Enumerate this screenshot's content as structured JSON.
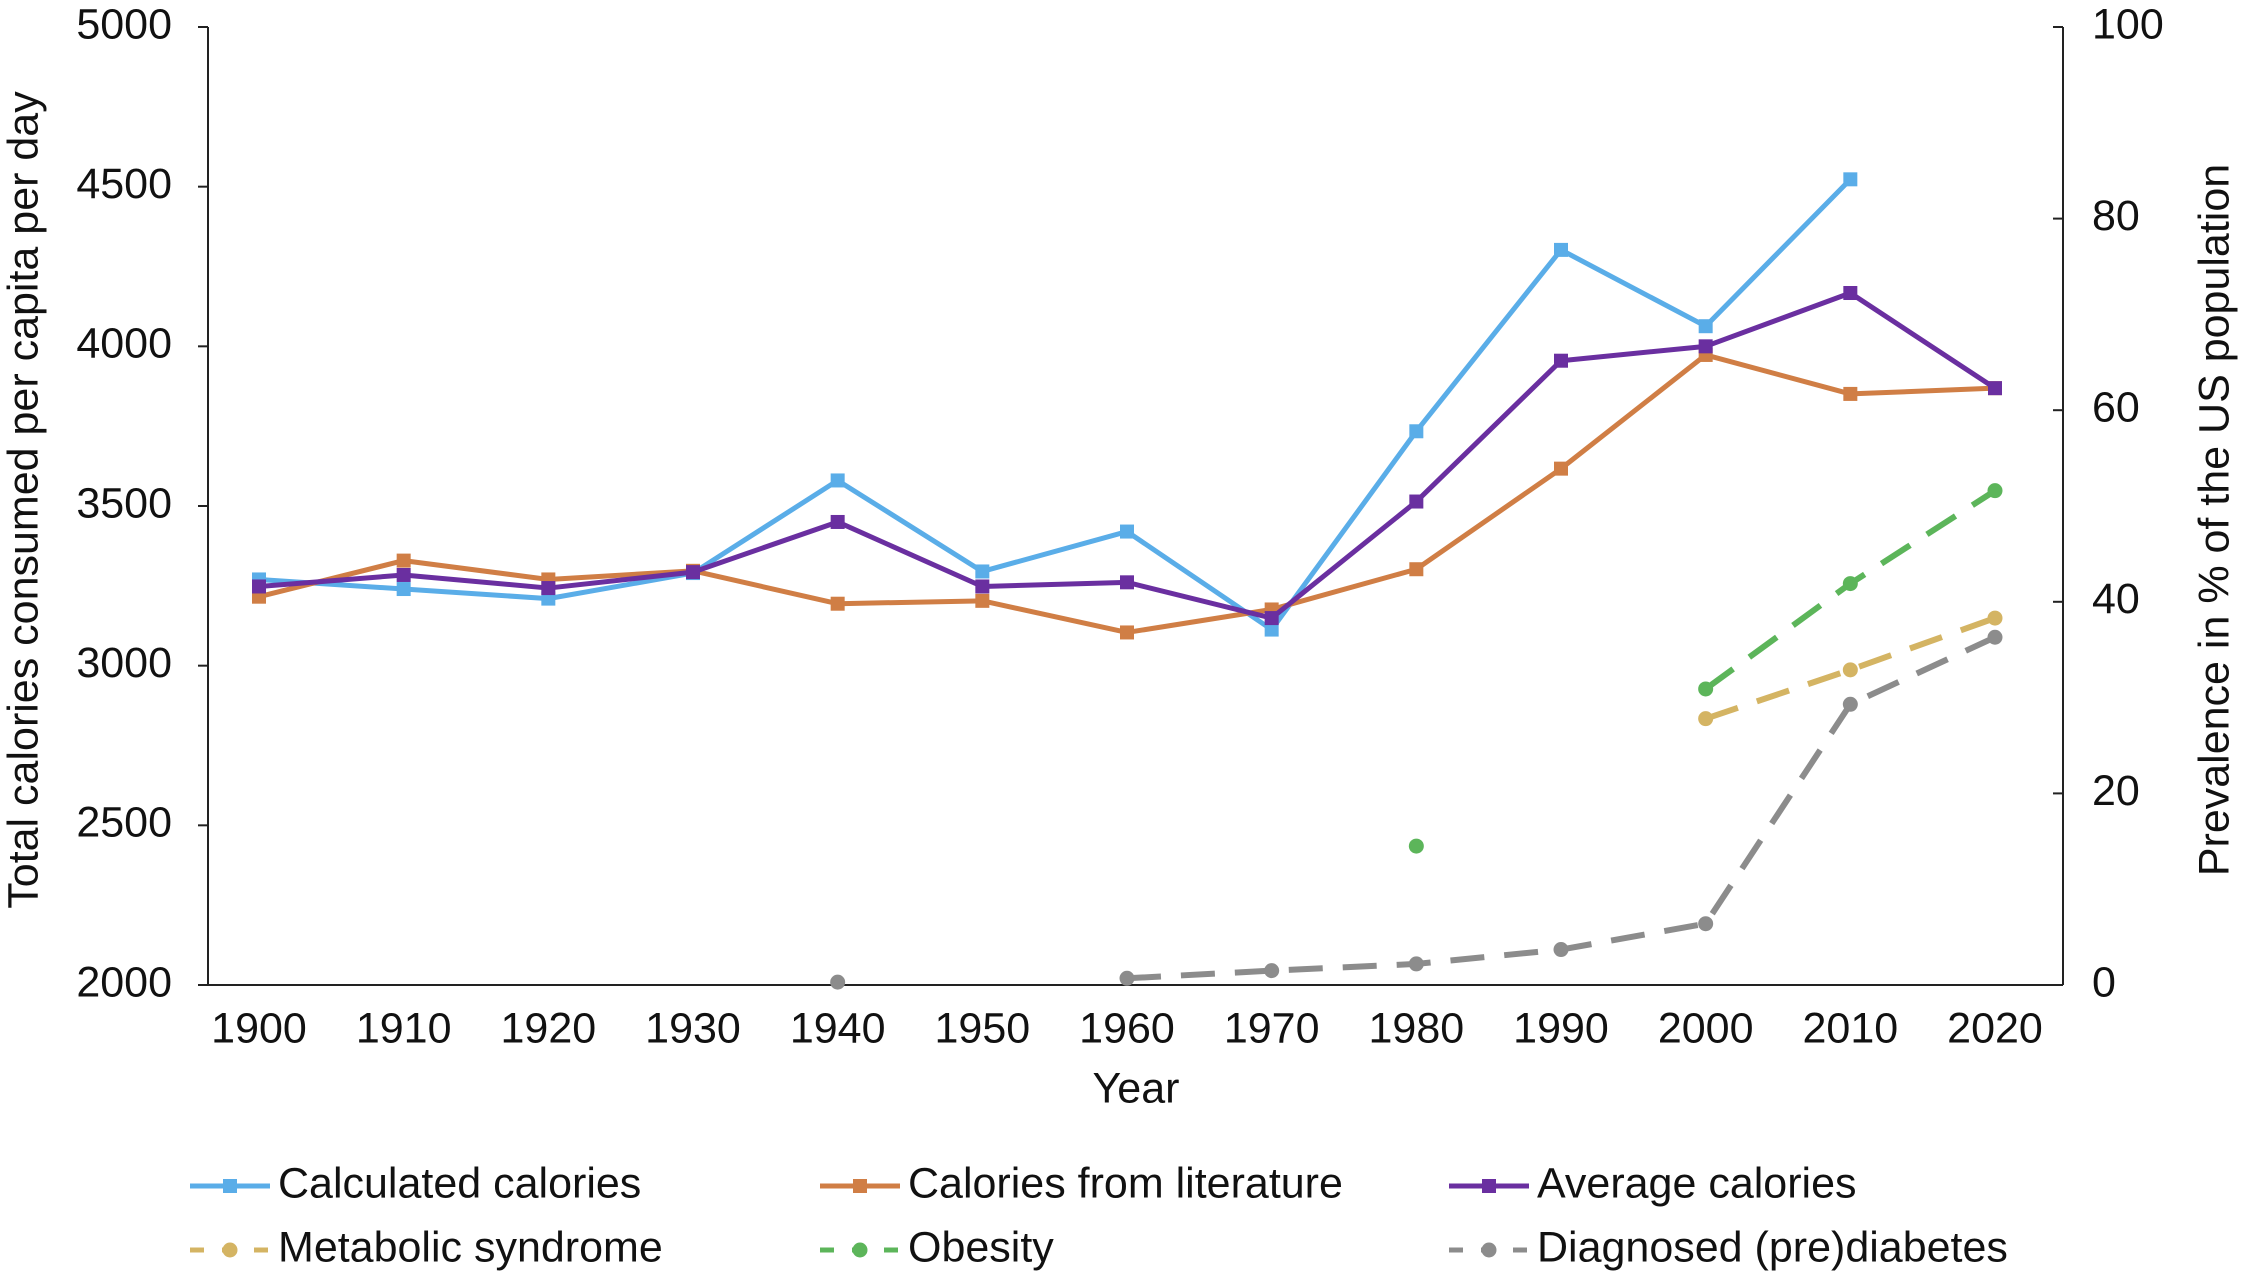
{
  "chart_data": {
    "type": "line",
    "x_label": "Year",
    "y_label": "Total calories consumed per capita per day",
    "y2_label": "Prevalence in % of the US population",
    "categories": [
      "1900",
      "1910",
      "1920",
      "1930",
      "1940",
      "1950",
      "1960",
      "1970",
      "1980",
      "1990",
      "2000",
      "2010",
      "2020"
    ],
    "ylim": [
      2000,
      5000
    ],
    "yticks": [
      2000,
      2500,
      3000,
      3500,
      4000,
      4500,
      5000
    ],
    "y2lim": [
      0,
      100
    ],
    "y2ticks": [
      0,
      20,
      40,
      60,
      80,
      100
    ],
    "grid": false,
    "legend": "bottom",
    "series": [
      {
        "name": "Calculated calories",
        "color": "#5aade8",
        "marker": "square",
        "dashed": false,
        "values": [
          3270,
          3240,
          3210,
          3290,
          3580,
          3295,
          3420,
          3113,
          3734,
          4302,
          4063,
          4523,
          null
        ]
      },
      {
        "name": "Calories from literature",
        "color": "#d07e45",
        "marker": "square",
        "dashed": false,
        "values": [
          3216,
          3329,
          3270,
          3297,
          3194,
          3203,
          3104,
          3176,
          3302,
          3617,
          3973,
          3851,
          3869
        ]
      },
      {
        "name": "Average calories",
        "color": "#6a2fa0",
        "marker": "square",
        "dashed": false,
        "values": [
          3248,
          3284,
          3243,
          3293,
          3450,
          3248,
          3261,
          3149,
          3514,
          3955,
          4000,
          4167,
          3869
        ]
      },
      {
        "name": "Metabolic syndrome",
        "color": "#d4b463",
        "marker": "circle",
        "dashed": true,
        "axis": "y2",
        "values": [
          null,
          null,
          null,
          null,
          null,
          null,
          null,
          null,
          null,
          null,
          27.8,
          32.9,
          38.3
        ]
      },
      {
        "name": "Obesity",
        "color": "#5cb55a",
        "marker": "circle",
        "dashed": true,
        "axis": "y2",
        "values": [
          null,
          null,
          null,
          null,
          null,
          null,
          null,
          null,
          14.5,
          null,
          30.9,
          41.9,
          51.6
        ]
      },
      {
        "name": "Diagnosed (pre)diabetes",
        "color": "#8c8c8c",
        "marker": "circle",
        "dashed": true,
        "axis": "y2",
        "values": [
          null,
          null,
          null,
          null,
          0.3,
          null,
          0.7,
          1.5,
          2.2,
          3.7,
          6.4,
          29.3,
          36.3
        ]
      }
    ]
  }
}
